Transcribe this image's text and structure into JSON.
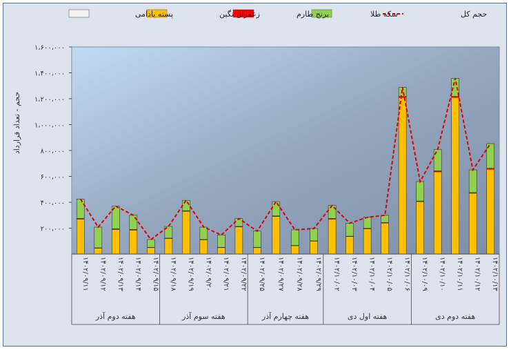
{
  "chart_data": {
    "type": "bar",
    "stacked": true,
    "ylabel": "حجم - تعداد قرارداد",
    "ylim": [
      0,
      1600000
    ],
    "y_ticks": [
      {
        "value": 200000,
        "label": "۲۰۰،۰۰۰"
      },
      {
        "value": 400000,
        "label": "۴۰۰،۰۰۰"
      },
      {
        "value": 600000,
        "label": "۶۰۰،۰۰۰"
      },
      {
        "value": 800000,
        "label": "۸۰۰،۰۰۰"
      },
      {
        "value": 1000000,
        "label": "۱،۰۰۰،۰۰۰"
      },
      {
        "value": 1200000,
        "label": "۱،۲۰۰،۰۰۰"
      },
      {
        "value": 1400000,
        "label": "۱،۴۰۰،۰۰۰"
      },
      {
        "value": 1600000,
        "label": "۱،۶۰۰،۰۰۰"
      }
    ],
    "categories": [
      "۱۴۰۲/۰۹/۱۱",
      "۱۴۰۲/۰۹/۱۲",
      "۱۴۰۲/۰۹/۱۳",
      "۱۴۰۲/۰۹/۱۴",
      "۱۴۰۲/۰۹/۱۵",
      "۱۴۰۲/۰۹/۱۸",
      "۱۴۰۲/۰۹/۱۹",
      "۱۴۰۲/۰۹/۲۰",
      "۱۴۰۲/۰۹/۲۱",
      "۱۴۰۲/۰۹/۲۲",
      "۱۴۰۲/۰۹/۲۵",
      "۱۴۰۲/۰۹/۲۷",
      "۱۴۰۲/۰۹/۲۸",
      "۱۴۰۲/۰۹/۲۹",
      "۱۴۰۲/۱۰/۰۲",
      "۱۴۰۲/۱۰/۰۳",
      "۱۴۰۲/۱۰/۰۴",
      "۱۴۰۲/۱۰/۰۵",
      "۱۴۰۲/۱۰/۰۶",
      "۱۴۰۲/۱۰/۰۹",
      "۱۴۰۲/۱۰/۱۰",
      "۱۴۰۲/۱۰/۱۱",
      "۱۴۰۲/۱۰/۱۲",
      "۱۴۰۲/۱۰/۱۳"
    ],
    "week_groups": [
      {
        "label": "هفته دوم آذر",
        "count": 5
      },
      {
        "label": "هفته سوم آذر",
        "count": 5
      },
      {
        "label": "هفته چهارم آذر",
        "count": 4
      },
      {
        "label": "هفته اول دی",
        "count": 5
      },
      {
        "label": "هفته دوم دی",
        "count": 5
      }
    ],
    "series": [
      {
        "name": "زعفران نگین",
        "color": "#ffc000",
        "values": [
          270000,
          45000,
          190000,
          185000,
          50000,
          120000,
          330000,
          110000,
          50000,
          210000,
          50000,
          290000,
          65000,
          100000,
          270000,
          135000,
          195000,
          240000,
          1210000,
          405000,
          635000,
          1210000,
          470000,
          655000
        ]
      },
      {
        "name": "برنج طارم",
        "color": "#ff0000",
        "values": [
          5000,
          3000,
          5000,
          5000,
          2000,
          3000,
          5000,
          3000,
          2000,
          4000,
          2000,
          5000,
          2000,
          2000,
          5000,
          3000,
          4000,
          4000,
          8000,
          5000,
          8000,
          8000,
          5000,
          8000
        ]
      },
      {
        "name": "سکه طلا",
        "color": "#92d050",
        "values": [
          150000,
          160000,
          175000,
          110000,
          60000,
          90000,
          80000,
          95000,
          95000,
          60000,
          125000,
          110000,
          120000,
          95000,
          100000,
          100000,
          85000,
          55000,
          70000,
          150000,
          165000,
          140000,
          175000,
          190000
        ]
      },
      {
        "name": "پسته بادامی",
        "color": "#f2f2f2",
        "values": [
          0,
          0,
          0,
          0,
          0,
          0,
          0,
          0,
          0,
          0,
          0,
          0,
          0,
          0,
          0,
          0,
          0,
          0,
          0,
          0,
          0,
          0,
          0,
          0
        ]
      }
    ],
    "line": {
      "name": "حجم کل",
      "color": "#e00000",
      "values": [
        425000,
        208000,
        370000,
        300000,
        112000,
        213000,
        415000,
        208000,
        147000,
        274000,
        177000,
        405000,
        187000,
        197000,
        375000,
        238000,
        284000,
        299000,
        1288000,
        560000,
        808000,
        1358000,
        650000,
        853000
      ]
    }
  }
}
